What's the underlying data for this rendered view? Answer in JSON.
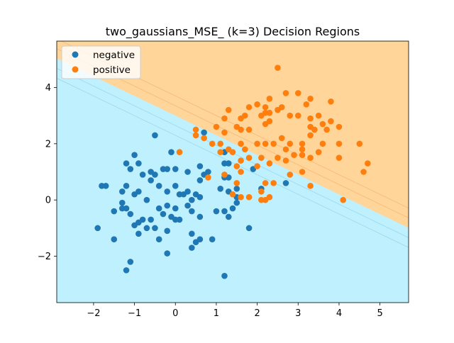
{
  "chart_data": {
    "type": "scatter",
    "title": "two_gaussians_MSE_ (k=3) Decision Regions",
    "xlabel": "",
    "ylabel": "",
    "xlim": [
      -2.9,
      5.7
    ],
    "ylim": [
      -3.65,
      5.65
    ],
    "x_ticks": [
      -2,
      -1,
      0,
      1,
      2,
      3,
      4,
      5
    ],
    "y_ticks": [
      -2,
      0,
      2,
      4
    ],
    "legend_position": "top-left",
    "boundary": {
      "intercept": 3.0,
      "slope": -0.7
    },
    "region_colors": {
      "negative": "#bff0fe",
      "positive": "#ffd599"
    },
    "series": [
      {
        "name": "negative",
        "color": "#1f77b4",
        "points": [
          [
            -1.0,
            1.6
          ],
          [
            -0.5,
            2.3
          ],
          [
            0.7,
            2.4
          ],
          [
            -0.1,
            1.7
          ],
          [
            -0.3,
            1.1
          ],
          [
            -1.2,
            1.3
          ],
          [
            -0.9,
            1.3
          ],
          [
            -1.1,
            1.1
          ],
          [
            -0.8,
            0.9
          ],
          [
            -0.6,
            1.0
          ],
          [
            -0.5,
            0.9
          ],
          [
            -0.2,
            1.1
          ],
          [
            0.0,
            1.1
          ],
          [
            0.3,
            1.0
          ],
          [
            0.6,
            1.2
          ],
          [
            0.7,
            0.9
          ],
          [
            0.6,
            0.7
          ],
          [
            0.8,
            1.0
          ],
          [
            1.2,
            1.7
          ],
          [
            1.3,
            1.3
          ],
          [
            1.2,
            1.3
          ],
          [
            1.2,
            0.8
          ],
          [
            1.1,
            0.4
          ],
          [
            1.3,
            0.3
          ],
          [
            1.5,
            0.4
          ],
          [
            1.5,
            0.1
          ],
          [
            1.5,
            -0.1
          ],
          [
            1.9,
            1.1
          ],
          [
            2.1,
            0.4
          ],
          [
            2.7,
            0.6
          ],
          [
            -1.8,
            0.5
          ],
          [
            -1.7,
            0.5
          ],
          [
            -1.3,
            0.3
          ],
          [
            -1.2,
            0.5
          ],
          [
            -1.0,
            0.2
          ],
          [
            -0.9,
            0.3
          ],
          [
            -0.6,
            0.7
          ],
          [
            -0.4,
            0.5
          ],
          [
            -0.2,
            0.3
          ],
          [
            0.0,
            0.5
          ],
          [
            0.1,
            0.2
          ],
          [
            0.2,
            0.2
          ],
          [
            0.3,
            0.3
          ],
          [
            0.5,
            0.2
          ],
          [
            0.6,
            0.1
          ],
          [
            -1.5,
            -0.4
          ],
          [
            -1.3,
            -0.1
          ],
          [
            -1.3,
            -0.3
          ],
          [
            -1.2,
            -0.3
          ],
          [
            -1.1,
            -0.5
          ],
          [
            -0.9,
            -0.8
          ],
          [
            -0.8,
            -0.7
          ],
          [
            -0.6,
            -0.7
          ],
          [
            -0.4,
            -0.3
          ],
          [
            -0.3,
            -0.5
          ],
          [
            -0.1,
            -0.6
          ],
          [
            0.0,
            -0.3
          ],
          [
            0.1,
            -0.7
          ],
          [
            0.3,
            -0.2
          ],
          [
            0.4,
            -0.4
          ],
          [
            0.6,
            -0.6
          ],
          [
            1.0,
            -0.4
          ],
          [
            1.2,
            -0.4
          ],
          [
            1.3,
            -0.6
          ],
          [
            -1.9,
            -1.0
          ],
          [
            -1.0,
            -0.9
          ],
          [
            -0.7,
            -1.0
          ],
          [
            -0.5,
            -1.0
          ],
          [
            -0.2,
            -1.1
          ],
          [
            -0.9,
            -1.2
          ],
          [
            -1.5,
            -1.4
          ],
          [
            -0.4,
            -1.4
          ],
          [
            0.4,
            -1.2
          ],
          [
            0.5,
            -1.5
          ],
          [
            0.6,
            -1.4
          ],
          [
            0.9,
            -1.4
          ],
          [
            0.4,
            -1.7
          ],
          [
            -0.2,
            -1.9
          ],
          [
            -1.1,
            -2.2
          ],
          [
            -1.2,
            -2.5
          ],
          [
            1.2,
            -2.7
          ],
          [
            1.8,
            -1.0
          ],
          [
            1.4,
            -0.3
          ],
          [
            0.0,
            -0.7
          ],
          [
            -0.7,
            0.0
          ],
          [
            -0.2,
            -0.2
          ],
          [
            0.4,
            0.0
          ],
          [
            1.3,
            0.8
          ]
        ]
      },
      {
        "name": "positive",
        "color": "#ff7f0e",
        "points": [
          [
            2.5,
            4.7
          ],
          [
            2.7,
            3.8
          ],
          [
            3.0,
            3.8
          ],
          [
            3.2,
            3.4
          ],
          [
            3.3,
            3.6
          ],
          [
            3.8,
            3.5
          ],
          [
            2.3,
            3.6
          ],
          [
            2.6,
            3.3
          ],
          [
            2.2,
            3.3
          ],
          [
            2.0,
            3.4
          ],
          [
            1.8,
            3.3
          ],
          [
            2.2,
            3.1
          ],
          [
            2.3,
            3.1
          ],
          [
            2.5,
            3.2
          ],
          [
            1.3,
            3.2
          ],
          [
            1.2,
            2.9
          ],
          [
            1.6,
            2.9
          ],
          [
            1.7,
            3.0
          ],
          [
            2.1,
            3.0
          ],
          [
            2.8,
            3.0
          ],
          [
            3.0,
            3.0
          ],
          [
            3.5,
            3.0
          ],
          [
            2.2,
            2.7
          ],
          [
            2.3,
            2.8
          ],
          [
            3.3,
            2.9
          ],
          [
            3.6,
            2.7
          ],
          [
            3.8,
            2.8
          ],
          [
            4.0,
            2.6
          ],
          [
            3.3,
            2.6
          ],
          [
            3.4,
            2.5
          ],
          [
            3.7,
            2.5
          ],
          [
            3.3,
            2.3
          ],
          [
            3.1,
            2.0
          ],
          [
            3.1,
            1.8
          ],
          [
            3.5,
            1.7
          ],
          [
            3.6,
            2.0
          ],
          [
            4.0,
            2.0
          ],
          [
            4.0,
            1.5
          ],
          [
            2.6,
            2.2
          ],
          [
            2.8,
            2.0
          ],
          [
            2.4,
            2.0
          ],
          [
            2.2,
            2.0
          ],
          [
            2.0,
            2.0
          ],
          [
            1.6,
            2.0
          ],
          [
            1.7,
            1.8
          ],
          [
            1.6,
            2.5
          ],
          [
            1.5,
            2.6
          ],
          [
            1.8,
            2.5
          ],
          [
            1.0,
            2.6
          ],
          [
            0.5,
            2.5
          ],
          [
            0.5,
            2.3
          ],
          [
            0.7,
            2.2
          ],
          [
            0.9,
            2.0
          ],
          [
            1.1,
            2.0
          ],
          [
            1.2,
            2.4
          ],
          [
            1.1,
            1.7
          ],
          [
            1.4,
            1.7
          ],
          [
            1.3,
            1.8
          ],
          [
            1.6,
            1.4
          ],
          [
            1.8,
            1.5
          ],
          [
            2.1,
            1.5
          ],
          [
            2.5,
            1.5
          ],
          [
            2.7,
            1.8
          ],
          [
            2.7,
            1.4
          ],
          [
            2.9,
            1.6
          ],
          [
            3.1,
            1.6
          ],
          [
            3.3,
            1.5
          ],
          [
            2.3,
            1.3
          ],
          [
            2.0,
            1.2
          ],
          [
            1.5,
            1.2
          ],
          [
            1.6,
            1.0
          ],
          [
            1.2,
            0.9
          ],
          [
            0.8,
            0.8
          ],
          [
            0.1,
            1.7
          ],
          [
            1.5,
            0.6
          ],
          [
            2.2,
            0.6
          ],
          [
            2.4,
            0.6
          ],
          [
            2.8,
            0.9
          ],
          [
            3.1,
            1.0
          ],
          [
            3.3,
            0.5
          ],
          [
            1.4,
            0.2
          ],
          [
            1.6,
            0.1
          ],
          [
            1.8,
            0.1
          ],
          [
            2.1,
            0.3
          ],
          [
            2.1,
            0.0
          ],
          [
            2.2,
            0.0
          ],
          [
            2.3,
            0.1
          ],
          [
            4.1,
            0.0
          ],
          [
            4.6,
            1.0
          ],
          [
            4.7,
            1.3
          ],
          [
            4.5,
            2.0
          ]
        ]
      }
    ]
  }
}
